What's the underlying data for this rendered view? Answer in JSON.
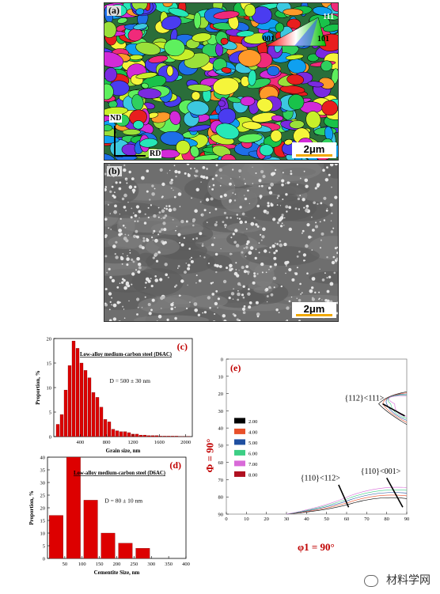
{
  "panel_a": {
    "label": "(a)",
    "legend": {
      "top": "111",
      "left": "001",
      "right": "101"
    },
    "axes": {
      "nd": "ND",
      "rd": "RD"
    },
    "scalebar": "2μm"
  },
  "panel_b": {
    "label": "(b)",
    "scalebar": "2μm"
  },
  "chart_data": [
    {
      "type": "bar",
      "panel": "(c)",
      "annotation": "Low-alloy medium-carbon steel (D6AC)",
      "stat": "D = 500 ± 30 nm",
      "xlabel": "Grain size, nm",
      "ylabel": "Proportion, %",
      "xlim": [
        0,
        2100
      ],
      "ylim": [
        0,
        20
      ],
      "xticks": [
        400,
        800,
        1200,
        1600,
        2000
      ],
      "yticks": [
        0,
        5,
        10,
        15,
        20
      ],
      "bin_width": 60,
      "x": [
        60,
        120,
        180,
        240,
        300,
        360,
        420,
        480,
        540,
        600,
        660,
        720,
        780,
        840,
        900,
        960,
        1020,
        1080,
        1140,
        1200,
        1260,
        1320,
        1380,
        1440,
        1500,
        1560,
        1620,
        1680,
        1740,
        1800,
        1860,
        1920,
        1980,
        2040
      ],
      "values": [
        2.5,
        4.5,
        9.5,
        14.5,
        19.5,
        18,
        15,
        13.5,
        12,
        9,
        8,
        6,
        3.5,
        3,
        1.5,
        1.2,
        1.0,
        1.0,
        0.8,
        0.5,
        0.5,
        0.3,
        0.3,
        0.2,
        0.2,
        0.2,
        0.1,
        0.1,
        0.1,
        0.1,
        0.1,
        0.05,
        0.05,
        0.05
      ],
      "bar_color": "#dd0000"
    },
    {
      "type": "bar",
      "panel": "(d)",
      "annotation": "Low-alloy medium-carbon steel (D6AC)",
      "stat": "D = 80 ± 10 nm",
      "xlabel": "Cementite Size, nm",
      "ylabel": "Proportion, %",
      "xlim": [
        0,
        400
      ],
      "ylim": [
        0,
        40
      ],
      "xticks": [
        50,
        100,
        150,
        200,
        250,
        300,
        350,
        400
      ],
      "yticks": [
        0,
        5,
        10,
        15,
        20,
        25,
        30,
        35,
        40
      ],
      "bin_width": 50,
      "x": [
        25,
        75,
        125,
        175,
        225,
        275
      ],
      "values": [
        17,
        40,
        23,
        10,
        6,
        4
      ],
      "bar_color": "#dd0000"
    }
  ],
  "panel_e": {
    "label": "(e)",
    "xlabel": "φ1 = 90°",
    "ylabel": "Φ = 90°",
    "xticks": [
      0,
      10,
      20,
      30,
      40,
      50,
      60,
      70,
      80,
      90
    ],
    "yticks": [
      0,
      10,
      20,
      30,
      40,
      50,
      60,
      70,
      80,
      90
    ],
    "legend": [
      {
        "value": "2.00",
        "color": "#000000"
      },
      {
        "value": "4.00",
        "color": "#e8502a"
      },
      {
        "value": "5.00",
        "color": "#1f4fa0"
      },
      {
        "value": "6.00",
        "color": "#3ccf85"
      },
      {
        "value": "7.00",
        "color": "#d86ad8"
      },
      {
        "value": "8.00",
        "color": "#b01020"
      }
    ],
    "annotations": [
      "{112}<111>",
      "{110}<112>",
      "{110}<001>"
    ]
  },
  "watermark": "材料学网"
}
